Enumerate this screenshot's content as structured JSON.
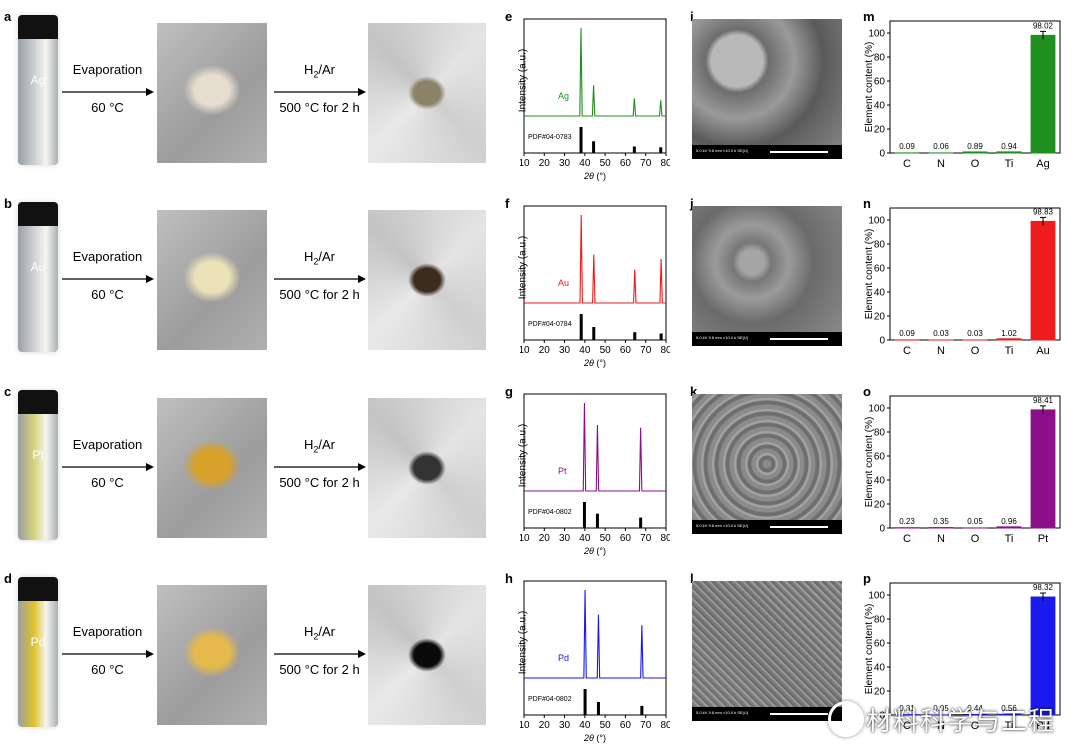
{
  "process": {
    "step1_label": "Evaporation",
    "step1_temp": "60 °C",
    "step2_gas_h": "H",
    "step2_gas_sub": "2",
    "step2_gas_rest": "/Ar",
    "step2_condition": "500 °C for 2 h"
  },
  "rows": [
    {
      "letter_a": "a",
      "letter_xrd": "e",
      "letter_sem": "i",
      "letter_bar": "m",
      "metal": "Ag",
      "color": "#1f8f1f",
      "vial_color": "#c9ced1",
      "powder_color": "#e7ddcf",
      "product_color": "#8c8268",
      "pdf_label": "PDF#04-0783",
      "sem_caption": "5.0 kV 9.8 mm ×10.0 k SE(U)",
      "xrd_peaks_deg": [
        38.1,
        44.3,
        64.4,
        77.4
      ],
      "xrd_peak_heights": [
        1.0,
        0.35,
        0.2,
        0.18
      ],
      "ref_peaks_deg": [
        38.1,
        44.3,
        64.4,
        77.4
      ],
      "ref_heights": [
        1.0,
        0.45,
        0.25,
        0.22
      ]
    },
    {
      "letter_a": "b",
      "letter_xrd": "f",
      "letter_sem": "j",
      "letter_bar": "n",
      "metal": "Au",
      "color": "#ee1c1c",
      "vial_color": "#cfd2d4",
      "powder_color": "#ece2b8",
      "product_color": "#3c2c1e",
      "pdf_label": "PDF#04-0784",
      "sem_caption": "5.0 kV 9.8 mm ×10.0 k SE(U)",
      "xrd_peaks_deg": [
        38.2,
        44.4,
        64.6,
        77.6
      ],
      "xrd_peak_heights": [
        1.0,
        0.55,
        0.38,
        0.5
      ],
      "ref_peaks_deg": [
        38.2,
        44.4,
        64.6,
        77.6
      ],
      "ref_heights": [
        1.0,
        0.5,
        0.3,
        0.25
      ]
    },
    {
      "letter_a": "c",
      "letter_xrd": "g",
      "letter_sem": "k",
      "letter_bar": "o",
      "metal": "Pt",
      "color": "#8b0e8b",
      "vial_color": "#d7d27a",
      "powder_color": "#d8a129",
      "product_color": "#333333",
      "pdf_label": "PDF#04-0802",
      "sem_caption": "5.0 kV 9.8 mm ×10.0 k SE(U)",
      "xrd_peaks_deg": [
        39.8,
        46.2,
        67.5
      ],
      "xrd_peak_heights": [
        1.0,
        0.75,
        0.72
      ],
      "ref_peaks_deg": [
        39.8,
        46.2,
        67.5
      ],
      "ref_heights": [
        1.0,
        0.55,
        0.4
      ]
    },
    {
      "letter_a": "d",
      "letter_xrd": "h",
      "letter_sem": "l",
      "letter_bar": "p",
      "metal": "Pd",
      "color": "#1a1aee",
      "vial_color": "#e0c22a",
      "powder_color": "#e6b94c",
      "product_color": "#0a0a0a",
      "pdf_label": "PDF#04-0802",
      "sem_caption": "5.0 kV 9.8 mm ×10.0 k SE(U)",
      "xrd_peaks_deg": [
        40.1,
        46.7,
        68.1
      ],
      "xrd_peak_heights": [
        1.0,
        0.72,
        0.6
      ],
      "ref_peaks_deg": [
        40.1,
        46.7,
        68.1
      ],
      "ref_heights": [
        1.0,
        0.5,
        0.35
      ]
    }
  ],
  "xrd_axes": {
    "xlabel_theta": "2θ",
    "xlabel_unit": " (°)",
    "ylabel": "Intensity (a.u.)",
    "xticks": [
      "10",
      "20",
      "30",
      "40",
      "50",
      "60",
      "70",
      "80"
    ],
    "xrange": [
      10,
      80
    ]
  },
  "chart_data": [
    {
      "type": "bar",
      "title": "m",
      "categories": [
        "C",
        "N",
        "O",
        "Ti",
        "Ag"
      ],
      "values": [
        0.09,
        0.06,
        0.89,
        0.94,
        98.02
      ],
      "labels": [
        "0.09",
        "0.06",
        "0.89",
        "0.94",
        "98.02"
      ],
      "ylabel": "Element content (%)",
      "yticks": [
        "0",
        "20",
        "40",
        "60",
        "80",
        "100"
      ],
      "ylim": [
        0,
        110
      ],
      "color": "#1f8f1f"
    },
    {
      "type": "bar",
      "title": "n",
      "categories": [
        "C",
        "N",
        "O",
        "Ti",
        "Au"
      ],
      "values": [
        0.09,
        0.03,
        0.03,
        1.02,
        98.83
      ],
      "labels": [
        "0.09",
        "0.03",
        "0.03",
        "1.02",
        "98.83"
      ],
      "ylabel": "Element content (%)",
      "yticks": [
        "0",
        "20",
        "40",
        "60",
        "80",
        "100"
      ],
      "ylim": [
        0,
        110
      ],
      "color": "#ee1c1c"
    },
    {
      "type": "bar",
      "title": "o",
      "categories": [
        "C",
        "N",
        "O",
        "Ti",
        "Pt"
      ],
      "values": [
        0.23,
        0.35,
        0.05,
        0.96,
        98.41
      ],
      "labels": [
        "0.23",
        "0.35",
        "0.05",
        "0.96",
        "98.41"
      ],
      "ylabel": "Element content (%)",
      "yticks": [
        "0",
        "20",
        "40",
        "60",
        "80",
        "100"
      ],
      "ylim": [
        0,
        110
      ],
      "color": "#8b0e8b"
    },
    {
      "type": "bar",
      "title": "p",
      "categories": [
        "C",
        "N",
        "O",
        "Ti",
        "Pd"
      ],
      "values": [
        0.31,
        0.05,
        0.44,
        0.56,
        98.32
      ],
      "labels": [
        "0.31",
        "0.05",
        "0.44",
        "0.56",
        "98.32"
      ],
      "ylabel": "Element content (%)",
      "yticks": [
        "0",
        "20",
        "40",
        "60",
        "80",
        "100"
      ],
      "ylim": [
        0,
        110
      ],
      "color": "#1a1aee"
    }
  ],
  "watermark": {
    "text": "材料科学与工程"
  }
}
